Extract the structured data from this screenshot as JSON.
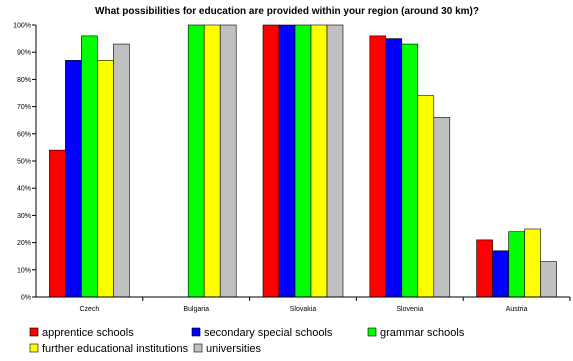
{
  "chart_data": {
    "type": "bar",
    "title": "What possibilities for education are provided within your region (around 30 km)?",
    "categories": [
      "Czech",
      "Bulgaria",
      "Slovakia",
      "Slovenia",
      "Austria"
    ],
    "ylim": [
      0,
      100
    ],
    "yticks": [
      "0%",
      "10%",
      "20%",
      "30%",
      "40%",
      "50%",
      "60%",
      "70%",
      "80%",
      "90%",
      "100%"
    ],
    "grid": false,
    "legend_position": "bottom",
    "series": [
      {
        "name": "apprentice schools",
        "color": "#ff0000",
        "values": [
          54,
          0,
          100,
          96,
          21
        ]
      },
      {
        "name": "secondary special schools",
        "color": "#0000ff",
        "values": [
          87,
          0,
          100,
          95,
          17
        ]
      },
      {
        "name": "grammar schools",
        "color": "#00ff00",
        "values": [
          96,
          100,
          100,
          93,
          24
        ]
      },
      {
        "name": "further educational institutions",
        "color": "#ffff00",
        "values": [
          87,
          100,
          100,
          74,
          25
        ]
      },
      {
        "name": "universities",
        "color": "#c0c0c0",
        "values": [
          93,
          100,
          100,
          66,
          13
        ]
      }
    ]
  }
}
